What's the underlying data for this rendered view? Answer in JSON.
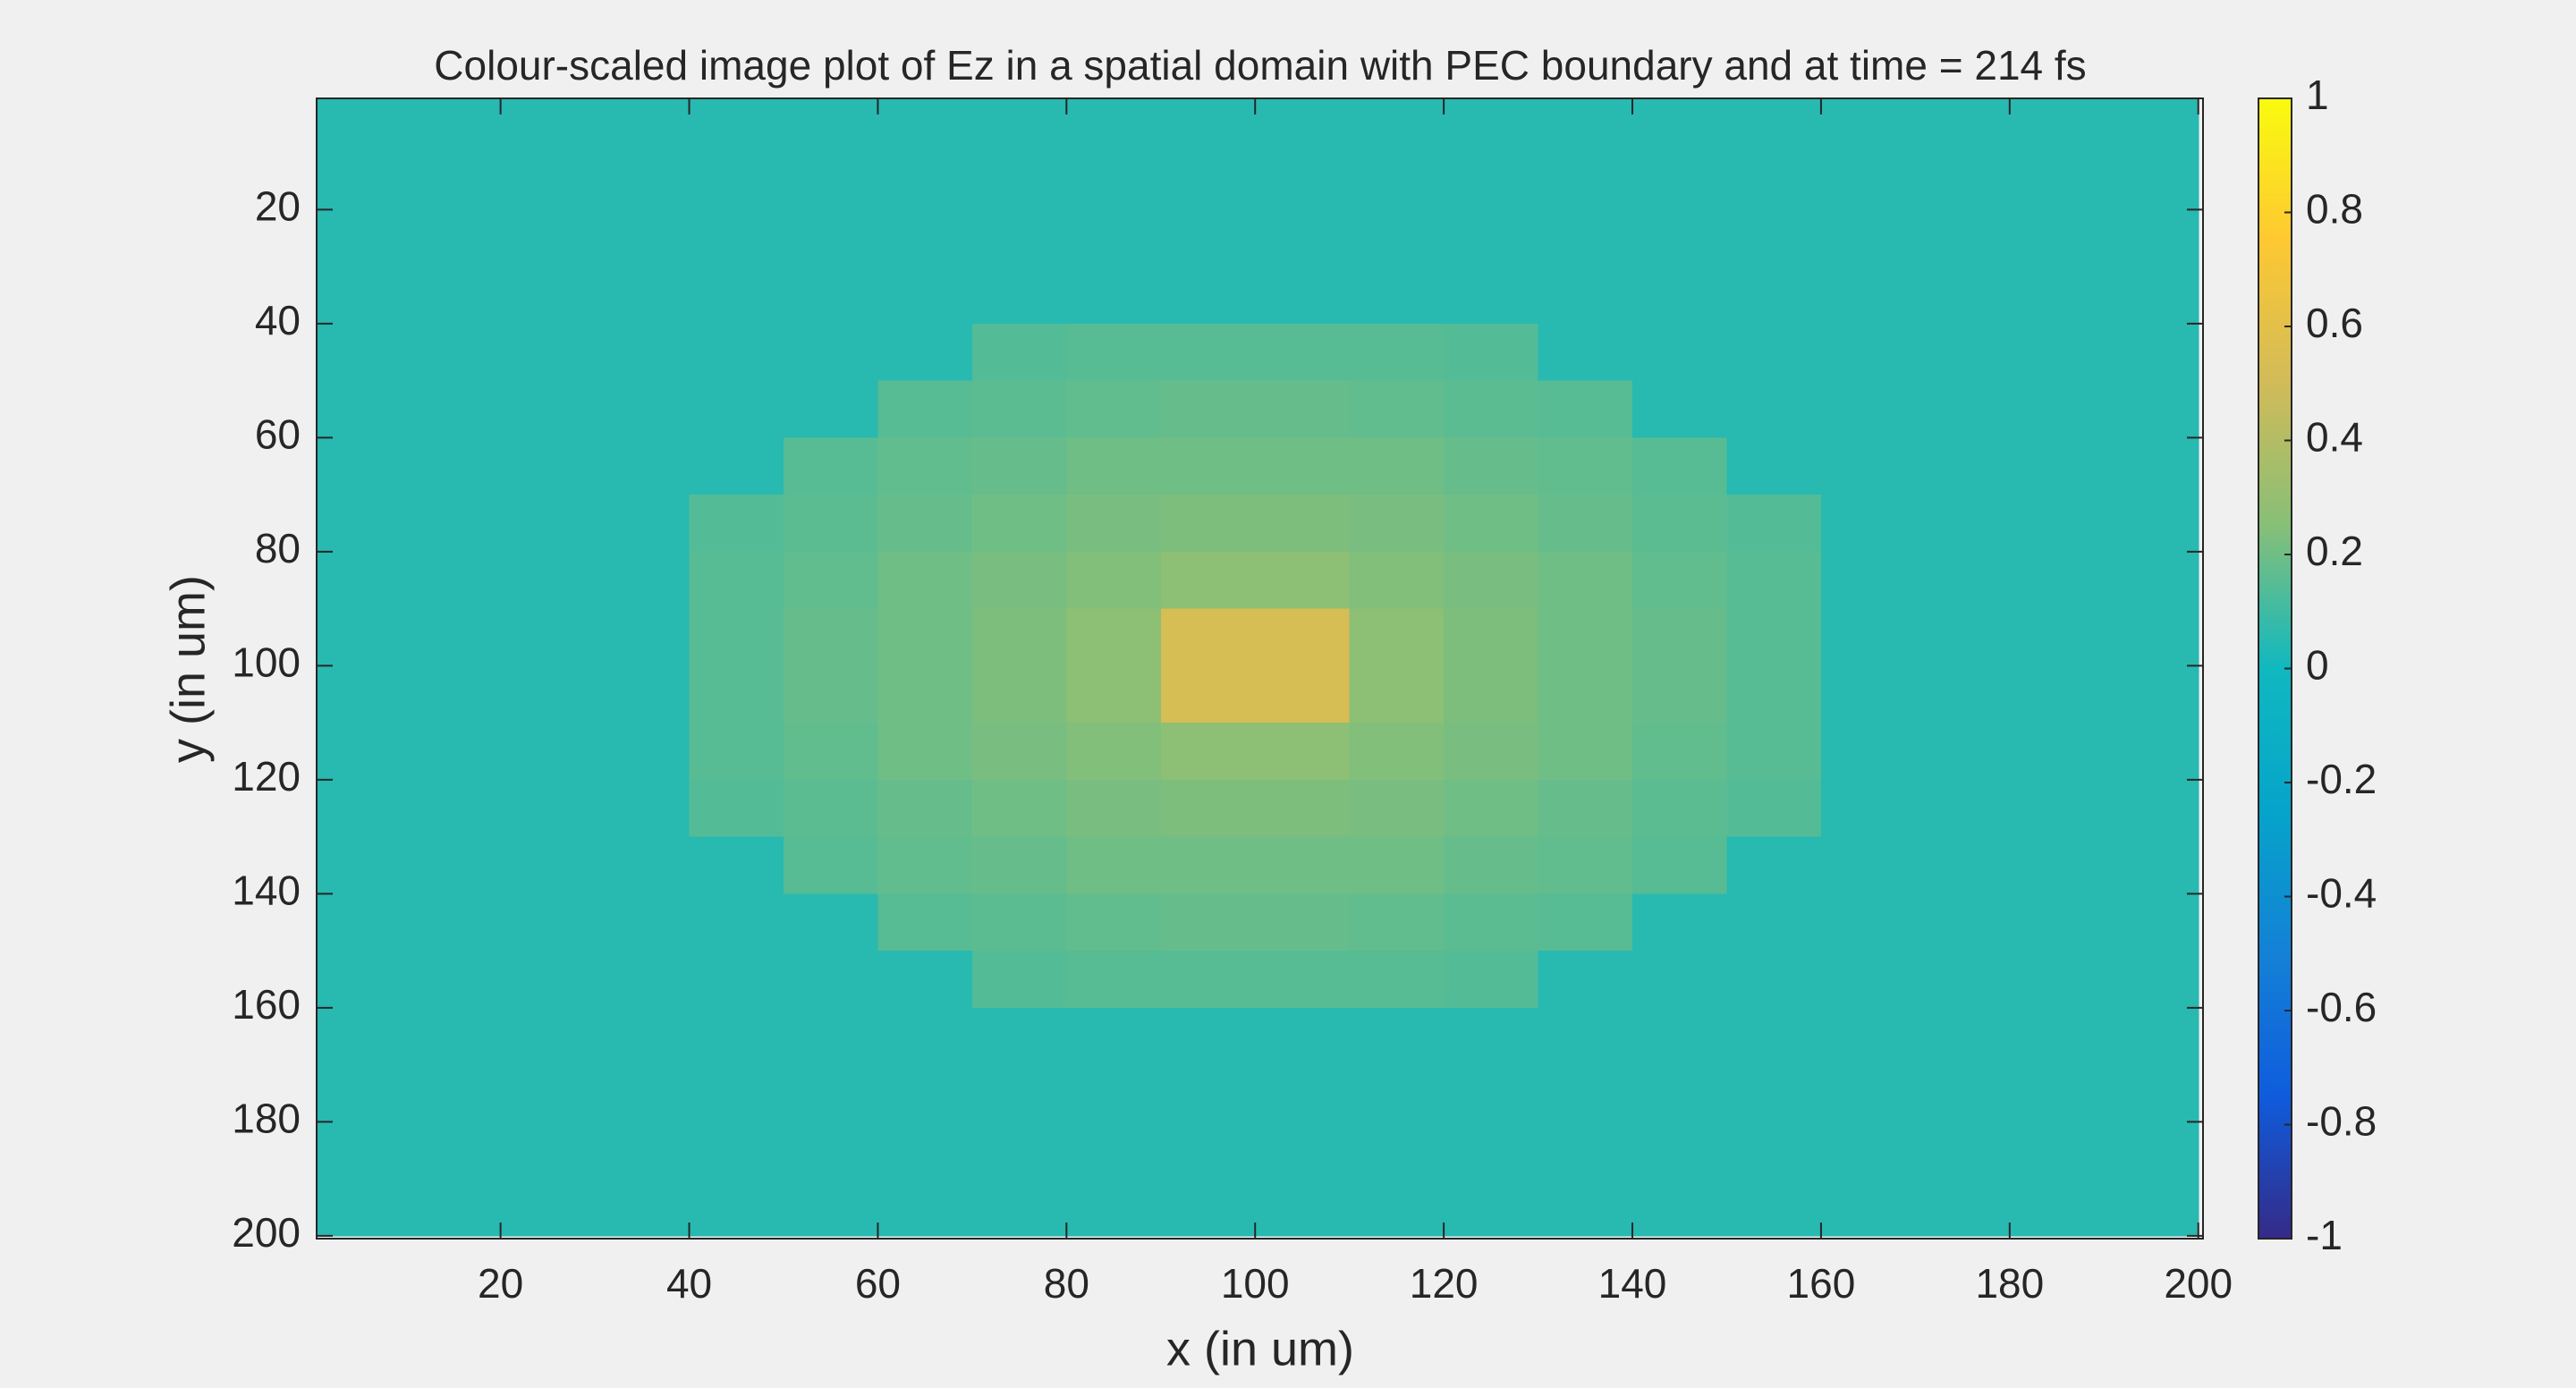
{
  "chart_data": {
    "type": "heatmap",
    "title": "Colour-scaled image plot of Ez in a spatial domain with PEC boundary and at time = 214 fs",
    "xlabel": "x (in um)",
    "ylabel": "y (in um)",
    "x": [
      5,
      15,
      25,
      35,
      45,
      55,
      65,
      75,
      85,
      95,
      105,
      115,
      125,
      135,
      145,
      155,
      165,
      175,
      185,
      195
    ],
    "y": [
      5,
      15,
      25,
      35,
      45,
      55,
      65,
      75,
      85,
      95,
      105,
      115,
      125,
      135,
      145,
      155,
      165,
      175,
      185,
      195
    ],
    "z": [
      [
        0.05,
        0.05,
        0.05,
        0.05,
        0.05,
        0.05,
        0.05,
        0.05,
        0.05,
        0.05,
        0.05,
        0.05,
        0.05,
        0.05,
        0.05,
        0.05,
        0.05,
        0.05,
        0.05,
        0.05
      ],
      [
        0.05,
        0.05,
        0.05,
        0.05,
        0.05,
        0.05,
        0.05,
        0.05,
        0.05,
        0.05,
        0.05,
        0.05,
        0.05,
        0.05,
        0.05,
        0.05,
        0.05,
        0.05,
        0.05,
        0.05
      ],
      [
        0.05,
        0.05,
        0.05,
        0.05,
        0.05,
        0.05,
        0.05,
        0.05,
        0.05,
        0.05,
        0.05,
        0.05,
        0.05,
        0.05,
        0.05,
        0.05,
        0.05,
        0.05,
        0.05,
        0.05
      ],
      [
        0.05,
        0.05,
        0.05,
        0.05,
        0.05,
        0.05,
        0.05,
        0.05,
        0.05,
        0.05,
        0.05,
        0.05,
        0.05,
        0.05,
        0.05,
        0.05,
        0.05,
        0.05,
        0.05,
        0.05
      ],
      [
        0.05,
        0.05,
        0.05,
        0.05,
        0.05,
        0.05,
        0.05,
        0.14,
        0.15,
        0.15,
        0.15,
        0.15,
        0.14,
        0.05,
        0.05,
        0.05,
        0.05,
        0.05,
        0.05,
        0.05
      ],
      [
        0.05,
        0.05,
        0.05,
        0.05,
        0.05,
        0.05,
        0.15,
        0.16,
        0.17,
        0.18,
        0.18,
        0.17,
        0.16,
        0.15,
        0.05,
        0.05,
        0.05,
        0.05,
        0.05,
        0.05
      ],
      [
        0.05,
        0.05,
        0.05,
        0.05,
        0.05,
        0.15,
        0.17,
        0.18,
        0.2,
        0.2,
        0.2,
        0.2,
        0.18,
        0.17,
        0.15,
        0.05,
        0.05,
        0.05,
        0.05,
        0.05
      ],
      [
        0.05,
        0.05,
        0.05,
        0.05,
        0.14,
        0.16,
        0.18,
        0.2,
        0.22,
        0.23,
        0.23,
        0.22,
        0.2,
        0.18,
        0.16,
        0.14,
        0.05,
        0.05,
        0.05,
        0.05
      ],
      [
        0.05,
        0.05,
        0.05,
        0.05,
        0.15,
        0.17,
        0.2,
        0.22,
        0.24,
        0.27,
        0.27,
        0.24,
        0.22,
        0.2,
        0.17,
        0.15,
        0.05,
        0.05,
        0.05,
        0.05
      ],
      [
        0.05,
        0.05,
        0.05,
        0.05,
        0.15,
        0.18,
        0.2,
        0.23,
        0.27,
        0.53,
        0.53,
        0.27,
        0.23,
        0.2,
        0.18,
        0.15,
        0.05,
        0.05,
        0.05,
        0.05
      ],
      [
        0.05,
        0.05,
        0.05,
        0.05,
        0.15,
        0.18,
        0.2,
        0.23,
        0.27,
        0.53,
        0.53,
        0.27,
        0.23,
        0.2,
        0.18,
        0.15,
        0.05,
        0.05,
        0.05,
        0.05
      ],
      [
        0.05,
        0.05,
        0.05,
        0.05,
        0.15,
        0.17,
        0.2,
        0.22,
        0.24,
        0.27,
        0.27,
        0.24,
        0.22,
        0.2,
        0.17,
        0.15,
        0.05,
        0.05,
        0.05,
        0.05
      ],
      [
        0.05,
        0.05,
        0.05,
        0.05,
        0.14,
        0.16,
        0.18,
        0.2,
        0.22,
        0.23,
        0.23,
        0.22,
        0.2,
        0.18,
        0.16,
        0.14,
        0.05,
        0.05,
        0.05,
        0.05
      ],
      [
        0.05,
        0.05,
        0.05,
        0.05,
        0.05,
        0.15,
        0.17,
        0.18,
        0.2,
        0.2,
        0.2,
        0.2,
        0.18,
        0.17,
        0.15,
        0.05,
        0.05,
        0.05,
        0.05,
        0.05
      ],
      [
        0.05,
        0.05,
        0.05,
        0.05,
        0.05,
        0.05,
        0.15,
        0.16,
        0.17,
        0.18,
        0.18,
        0.17,
        0.16,
        0.15,
        0.05,
        0.05,
        0.05,
        0.05,
        0.05,
        0.05
      ],
      [
        0.05,
        0.05,
        0.05,
        0.05,
        0.05,
        0.05,
        0.05,
        0.14,
        0.15,
        0.15,
        0.15,
        0.15,
        0.14,
        0.05,
        0.05,
        0.05,
        0.05,
        0.05,
        0.05,
        0.05
      ],
      [
        0.05,
        0.05,
        0.05,
        0.05,
        0.05,
        0.05,
        0.05,
        0.05,
        0.05,
        0.05,
        0.05,
        0.05,
        0.05,
        0.05,
        0.05,
        0.05,
        0.05,
        0.05,
        0.05,
        0.05
      ],
      [
        0.05,
        0.05,
        0.05,
        0.05,
        0.05,
        0.05,
        0.05,
        0.05,
        0.05,
        0.05,
        0.05,
        0.05,
        0.05,
        0.05,
        0.05,
        0.05,
        0.05,
        0.05,
        0.05,
        0.05
      ],
      [
        0.05,
        0.05,
        0.05,
        0.05,
        0.05,
        0.05,
        0.05,
        0.05,
        0.05,
        0.05,
        0.05,
        0.05,
        0.05,
        0.05,
        0.05,
        0.05,
        0.05,
        0.05,
        0.05,
        0.05
      ],
      [
        0.05,
        0.05,
        0.05,
        0.05,
        0.05,
        0.05,
        0.05,
        0.05,
        0.05,
        0.05,
        0.05,
        0.05,
        0.05,
        0.05,
        0.05,
        0.05,
        0.05,
        0.05,
        0.05,
        0.05
      ]
    ],
    "xlim": [
      0.5,
      200.5
    ],
    "xticks": [
      20,
      40,
      60,
      80,
      100,
      120,
      140,
      160,
      180,
      200
    ],
    "ylim": [
      0.5,
      200.5
    ],
    "yticks": [
      20,
      40,
      60,
      80,
      100,
      120,
      140,
      160,
      180,
      200
    ],
    "y_reversed": true,
    "clim": [
      -1,
      1
    ],
    "cticks": [
      -1,
      -0.8,
      -0.6,
      -0.4,
      -0.2,
      0,
      0.2,
      0.4,
      0.6,
      0.8,
      1
    ],
    "colormap": [
      "#352a87",
      "#0f5cdd",
      "#1481d6",
      "#06a4ca",
      "#10b8c0",
      "#87bf77",
      "#d1bb59",
      "#fec832",
      "#f9fb0e"
    ]
  }
}
